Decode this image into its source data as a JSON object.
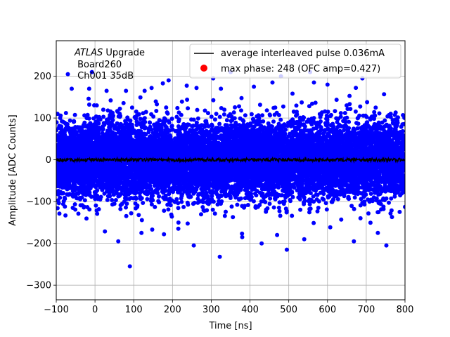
{
  "chart_data": {
    "type": "scatter",
    "xlabel": "Time [ns]",
    "ylabel": "Amplitude [ADC Counts]",
    "xlim": [
      -100,
      800
    ],
    "ylim": [
      -335,
      285
    ],
    "xticks": [
      -100,
      0,
      100,
      200,
      300,
      400,
      500,
      600,
      700,
      800
    ],
    "xtick_labels": [
      "−100",
      "0",
      "100",
      "200",
      "300",
      "400",
      "500",
      "600",
      "700",
      "800"
    ],
    "yticks": [
      -300,
      -200,
      -100,
      0,
      100,
      200
    ],
    "ytick_labels": [
      "−300",
      "−200",
      "−100",
      "0",
      "100",
      "200"
    ],
    "grid": true,
    "legend_position": "top-right",
    "annotation": {
      "line1_italic": "ATLAS",
      "line1_rest": " Upgrade",
      "line2": " Board260",
      "line3": " Ch001 35dB"
    },
    "series": [
      {
        "name": "average interleaved pulse 0.036mA",
        "kind": "line",
        "color": "#000000",
        "description_values": {
          "x_range": [
            -100,
            800
          ],
          "baseline": 0,
          "noise_amplitude": 4
        }
      },
      {
        "name": "",
        "kind": "scatter",
        "color": "#0000ff",
        "distribution": {
          "x_range": [
            -100,
            800
          ],
          "mean": 0,
          "std": 45,
          "count": 11000
        },
        "outliers": [
          [
            -70,
            205
          ],
          [
            -8,
            210
          ],
          [
            30,
            165
          ],
          [
            80,
            165
          ],
          [
            128,
            165
          ],
          [
            190,
            190
          ],
          [
            262,
            172
          ],
          [
            305,
            195
          ],
          [
            325,
            170
          ],
          [
            350,
            210
          ],
          [
            458,
            185
          ],
          [
            480,
            200
          ],
          [
            555,
            210
          ],
          [
            565,
            185
          ],
          [
            690,
            195
          ],
          [
            -15,
            170
          ],
          [
            -60,
            170
          ],
          [
            175,
            183
          ],
          [
            410,
            175
          ],
          [
            600,
            180
          ],
          [
            90,
            -255
          ],
          [
            178,
            -178
          ],
          [
            255,
            -205
          ],
          [
            322,
            -232
          ],
          [
            380,
            -185
          ],
          [
            430,
            -200
          ],
          [
            495,
            -215
          ],
          [
            540,
            -190
          ],
          [
            668,
            -195
          ],
          [
            752,
            -205
          ],
          [
            60,
            -195
          ],
          [
            120,
            -175
          ],
          [
            215,
            -165
          ],
          [
            470,
            -180
          ],
          [
            730,
            -175
          ]
        ]
      },
      {
        "name": "max phase: 248 (OFC amp=0.427)",
        "kind": "marker",
        "color": "#ff0000",
        "points": [
          [
            248,
            0.427
          ]
        ]
      }
    ]
  }
}
